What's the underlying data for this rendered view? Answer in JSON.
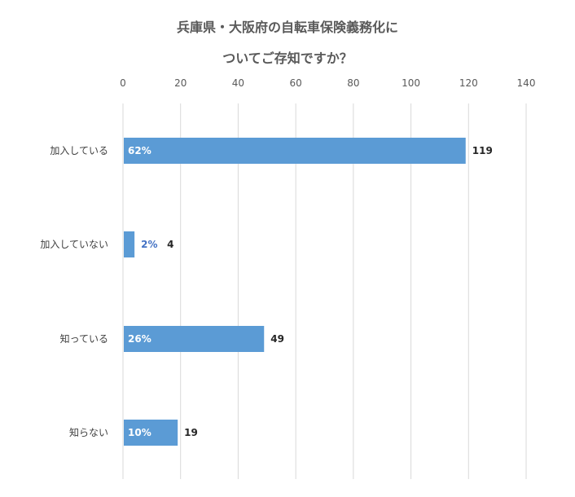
{
  "chart_data": {
    "type": "bar",
    "orientation": "horizontal",
    "title_lines": [
      "兵庫県・大阪府の自転車保険義務化に",
      "ついてご存知ですか？"
    ],
    "categories": [
      "加入している",
      "加入していない",
      "知っている",
      "知らない"
    ],
    "values": [
      119,
      4,
      49,
      19
    ],
    "percent_labels": [
      "62%",
      "2%",
      "26%",
      "10%"
    ],
    "xlim": [
      0,
      140
    ],
    "x_ticks": [
      0,
      20,
      40,
      60,
      80,
      100,
      120,
      140
    ],
    "x_axis_position": "top",
    "grid": true,
    "bar_color": "#5b9bd5",
    "percent_label_color_inside": "#ffffff",
    "percent_label_color_outside": "#4472c4"
  }
}
